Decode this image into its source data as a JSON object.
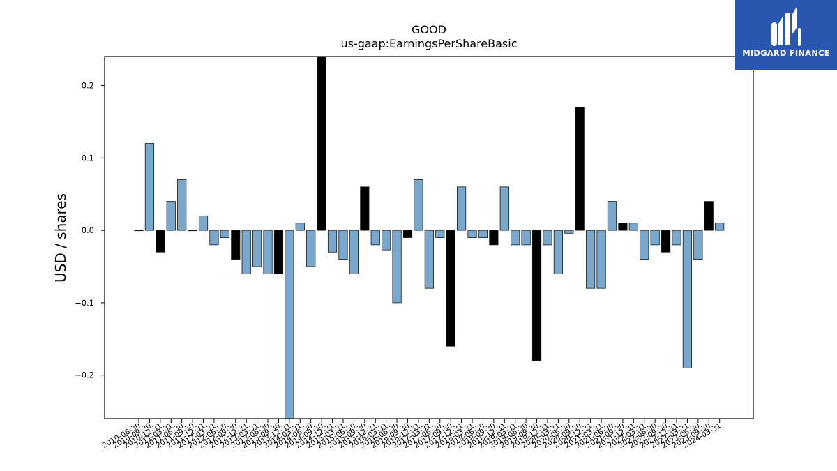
{
  "chart_data": {
    "type": "bar",
    "title": "GOOD",
    "subtitle": "us-gaap:EarningsPerShareBasic",
    "xlabel": "",
    "ylabel": "USD / shares",
    "ylim": [
      -0.26,
      0.24
    ],
    "yticks": [
      -0.2,
      -0.1,
      0.0,
      0.1,
      0.2
    ],
    "ytick_labels": [
      "−0.2",
      "−0.1",
      "0.0",
      "0.1",
      "0.2"
    ],
    "grid": false,
    "colors": {
      "regular": "#7aa8cc",
      "highlight": "#000000",
      "edge": "#1a1a1a"
    },
    "bars": [
      {
        "label": "2010-06-30",
        "value": 0.0,
        "highlight": false
      },
      {
        "label": "2010-09-30",
        "value": 0.12,
        "highlight": false
      },
      {
        "label": "2010-12-31",
        "value": -0.03,
        "highlight": true
      },
      {
        "label": "2011-03-31",
        "value": 0.04,
        "highlight": false
      },
      {
        "label": "2011-06-30",
        "value": 0.07,
        "highlight": false
      },
      {
        "label": "2011-09-30",
        "value": 0.0,
        "highlight": false
      },
      {
        "label": "2011-12-31",
        "value": 0.02,
        "highlight": false
      },
      {
        "label": "2012-03-31",
        "value": -0.02,
        "highlight": false
      },
      {
        "label": "2012-06-30",
        "value": -0.01,
        "highlight": false
      },
      {
        "label": "2012-09-30",
        "value": -0.04,
        "highlight": true
      },
      {
        "label": "2012-12-31",
        "value": -0.06,
        "highlight": false
      },
      {
        "label": "2013-03-31",
        "value": -0.05,
        "highlight": false
      },
      {
        "label": "2013-06-30",
        "value": -0.06,
        "highlight": false
      },
      {
        "label": "2013-09-30",
        "value": -0.06,
        "highlight": true
      },
      {
        "label": "2013-12-31",
        "value": -0.26,
        "highlight": false
      },
      {
        "label": "2014-03-31",
        "value": 0.01,
        "highlight": false
      },
      {
        "label": "2014-06-30",
        "value": -0.05,
        "highlight": false
      },
      {
        "label": "2014-09-30",
        "value": 0.24,
        "highlight": true
      },
      {
        "label": "2014-12-31",
        "value": -0.03,
        "highlight": false
      },
      {
        "label": "2015-03-31",
        "value": -0.04,
        "highlight": false
      },
      {
        "label": "2015-06-30",
        "value": -0.06,
        "highlight": false
      },
      {
        "label": "2015-09-30",
        "value": 0.06,
        "highlight": true
      },
      {
        "label": "2015-12-31",
        "value": -0.02,
        "highlight": false
      },
      {
        "label": "2016-03-31",
        "value": -0.027,
        "highlight": false
      },
      {
        "label": "2016-06-30",
        "value": -0.1,
        "highlight": false
      },
      {
        "label": "2016-09-30",
        "value": -0.01,
        "highlight": true
      },
      {
        "label": "2016-12-31",
        "value": 0.07,
        "highlight": false
      },
      {
        "label": "2017-03-31",
        "value": -0.08,
        "highlight": false
      },
      {
        "label": "2017-06-30",
        "value": -0.01,
        "highlight": false
      },
      {
        "label": "2017-09-30",
        "value": -0.16,
        "highlight": true
      },
      {
        "label": "2017-12-31",
        "value": 0.06,
        "highlight": false
      },
      {
        "label": "2018-03-31",
        "value": -0.01,
        "highlight": false
      },
      {
        "label": "2018-06-30",
        "value": -0.01,
        "highlight": false
      },
      {
        "label": "2018-09-30",
        "value": -0.02,
        "highlight": true
      },
      {
        "label": "2018-12-31",
        "value": 0.06,
        "highlight": false
      },
      {
        "label": "2019-03-31",
        "value": -0.02,
        "highlight": false
      },
      {
        "label": "2019-06-30",
        "value": -0.02,
        "highlight": false
      },
      {
        "label": "2019-09-30",
        "value": -0.18,
        "highlight": true
      },
      {
        "label": "2019-12-31",
        "value": -0.02,
        "highlight": false
      },
      {
        "label": "2020-03-31",
        "value": -0.06,
        "highlight": false
      },
      {
        "label": "2020-06-30",
        "value": -0.004,
        "highlight": false
      },
      {
        "label": "2020-09-30",
        "value": 0.17,
        "highlight": true
      },
      {
        "label": "2020-12-31",
        "value": -0.08,
        "highlight": false
      },
      {
        "label": "2021-03-31",
        "value": -0.08,
        "highlight": false
      },
      {
        "label": "2021-06-30",
        "value": 0.04,
        "highlight": false
      },
      {
        "label": "2021-09-30",
        "value": 0.01,
        "highlight": true
      },
      {
        "label": "2021-12-31",
        "value": 0.01,
        "highlight": false
      },
      {
        "label": "2022-03-31",
        "value": -0.04,
        "highlight": false
      },
      {
        "label": "2022-06-30",
        "value": -0.02,
        "highlight": false
      },
      {
        "label": "2022-09-30",
        "value": -0.03,
        "highlight": true
      },
      {
        "label": "2022-12-31",
        "value": -0.02,
        "highlight": false
      },
      {
        "label": "2023-03-31",
        "value": -0.19,
        "highlight": false
      },
      {
        "label": "2023-06-30",
        "value": -0.04,
        "highlight": false
      },
      {
        "label": "2023-09-30",
        "value": 0.04,
        "highlight": true
      },
      {
        "label": "2024-03-31",
        "value": 0.01,
        "highlight": false
      }
    ]
  },
  "logo": {
    "text": "MIDGARD FINANCE",
    "icon": "midgard-logo-icon",
    "background": "#2a56b0"
  }
}
